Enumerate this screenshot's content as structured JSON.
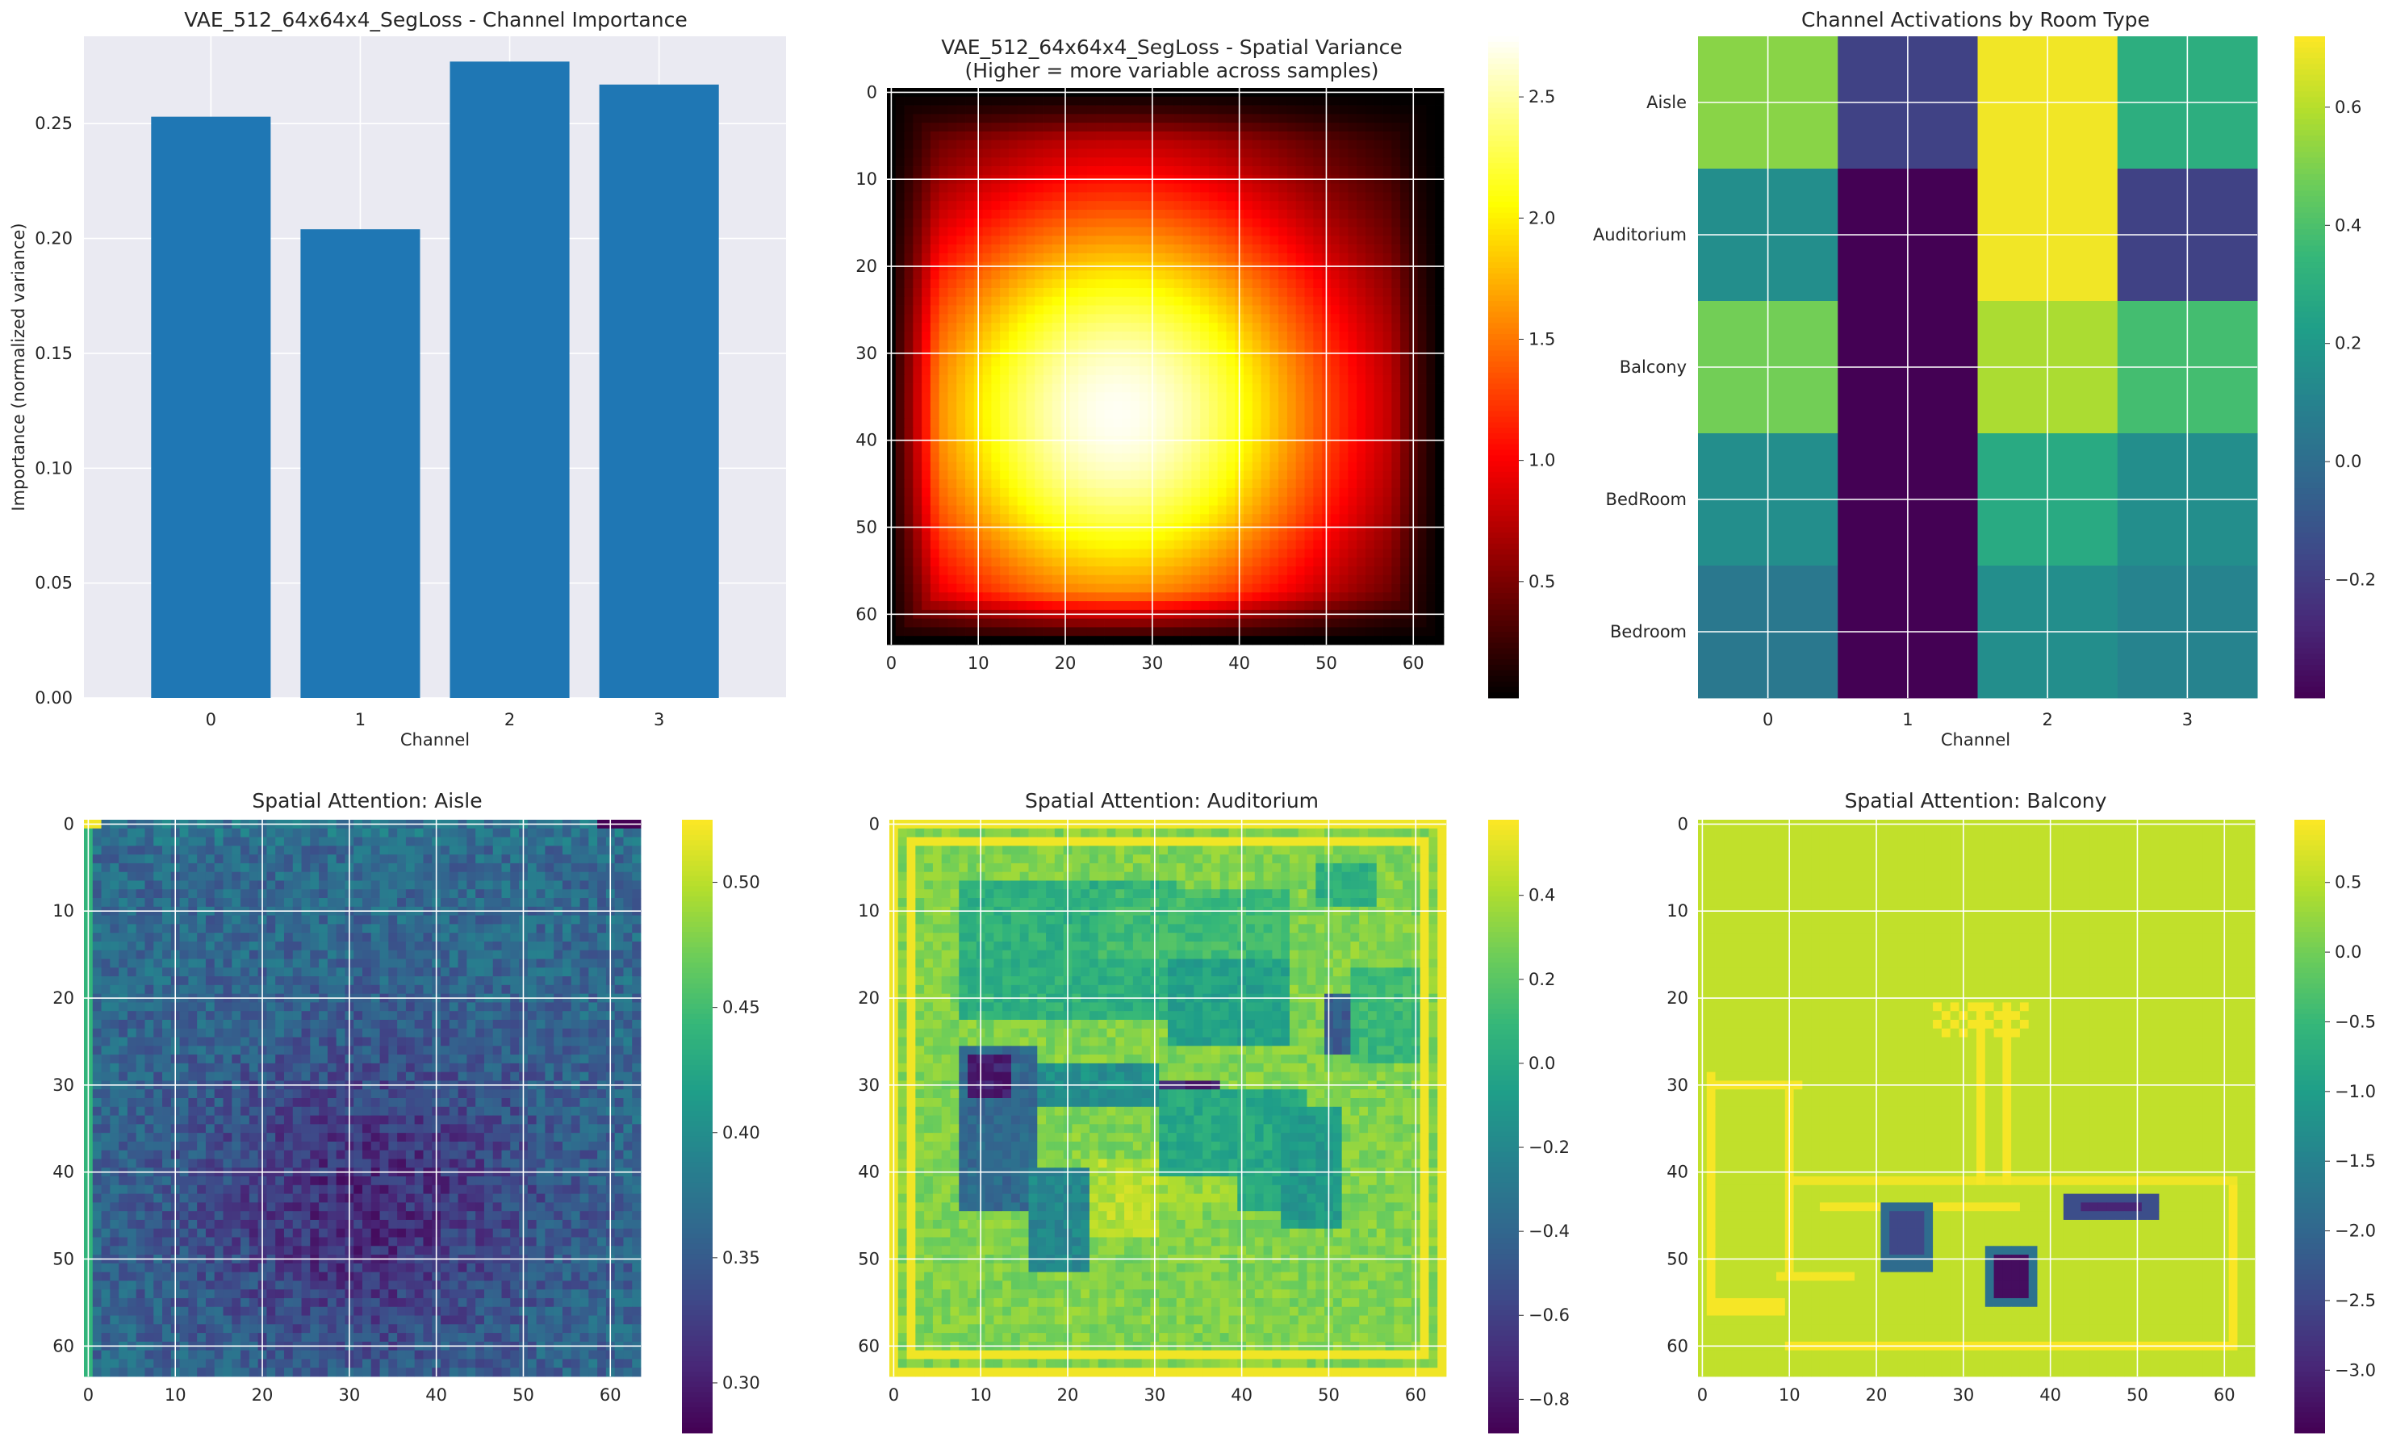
{
  "colors": {
    "panel_background": "#eaeaf2",
    "grid": "#ffffff",
    "bar": "#1f77b4",
    "text": "#262626"
  },
  "chart_data": [
    {
      "id": "channel-importance",
      "type": "bar",
      "title": "VAE_512_64x64x4_SegLoss - Channel Importance",
      "xlabel": "Channel",
      "ylabel": "Importance (normalized variance)",
      "categories": [
        "0",
        "1",
        "2",
        "3"
      ],
      "values": [
        0.253,
        0.204,
        0.277,
        0.267
      ],
      "ylim": [
        0,
        0.288
      ],
      "yticks": [
        "0.00",
        "0.05",
        "0.10",
        "0.15",
        "0.20",
        "0.25"
      ],
      "grid": true,
      "legend": "none"
    },
    {
      "id": "spatial-variance",
      "type": "heatmap",
      "title": "VAE_512_64x64x4_SegLoss - Spatial Variance",
      "subtitle": "(Higher = more variable across samples)",
      "colormap": "hot",
      "grid_size": [
        64,
        64
      ],
      "xticks": [
        "0",
        "10",
        "20",
        "30",
        "40",
        "50",
        "60"
      ],
      "yticks": [
        "0",
        "10",
        "20",
        "30",
        "40",
        "50",
        "60"
      ],
      "value_range": [
        0.02,
        2.75
      ],
      "peak": {
        "x": 26,
        "y": 37,
        "value": 2.75
      },
      "colorbar_ticks": [
        "0.5",
        "1.0",
        "1.5",
        "2.0",
        "2.5"
      ],
      "grid": true
    },
    {
      "id": "channel-activations",
      "type": "heatmap",
      "title": "Channel Activations by Room Type",
      "xlabel": "Channel",
      "colormap": "viridis",
      "columns": [
        "0",
        "1",
        "2",
        "3"
      ],
      "rows": [
        "Aisle",
        "Auditorium",
        "Balcony",
        "BedRoom",
        "Bedroom"
      ],
      "values": [
        [
          0.52,
          -0.18,
          0.7,
          0.3
        ],
        [
          0.15,
          -0.4,
          0.7,
          -0.18
        ],
        [
          0.48,
          -0.4,
          0.58,
          0.38
        ],
        [
          0.15,
          -0.4,
          0.28,
          0.15
        ],
        [
          0.05,
          -0.4,
          0.15,
          0.1
        ]
      ],
      "value_range": [
        -0.4,
        0.72
      ],
      "colorbar_ticks": [
        "−0.2",
        "0.0",
        "0.2",
        "0.4",
        "0.6"
      ],
      "grid": true
    },
    {
      "id": "attention-aisle",
      "type": "heatmap",
      "title": "Spatial Attention: Aisle",
      "colormap": "viridis",
      "grid_size": [
        64,
        64
      ],
      "xticks": [
        "0",
        "10",
        "20",
        "30",
        "40",
        "50",
        "60"
      ],
      "yticks": [
        "0",
        "10",
        "20",
        "30",
        "40",
        "50",
        "60"
      ],
      "value_range": [
        0.28,
        0.525
      ],
      "colorbar_ticks": [
        "0.30",
        "0.35",
        "0.40",
        "0.45",
        "0.50"
      ],
      "grid": true
    },
    {
      "id": "attention-auditorium",
      "type": "heatmap",
      "title": "Spatial Attention: Auditorium",
      "colormap": "viridis",
      "grid_size": [
        64,
        64
      ],
      "xticks": [
        "0",
        "10",
        "20",
        "30",
        "40",
        "50",
        "60"
      ],
      "yticks": [
        "0",
        "10",
        "20",
        "30",
        "40",
        "50",
        "60"
      ],
      "value_range": [
        -0.88,
        0.58
      ],
      "colorbar_ticks": [
        "−0.8",
        "−0.6",
        "−0.4",
        "−0.2",
        "0.0",
        "0.2",
        "0.4"
      ],
      "grid": true
    },
    {
      "id": "attention-balcony",
      "type": "heatmap",
      "title": "Spatial Attention: Balcony",
      "colormap": "viridis",
      "grid_size": [
        64,
        64
      ],
      "xticks": [
        "0",
        "10",
        "20",
        "30",
        "40",
        "50",
        "60"
      ],
      "yticks": [
        "0",
        "10",
        "20",
        "30",
        "40",
        "50",
        "60"
      ],
      "value_range": [
        -3.45,
        0.95
      ],
      "colorbar_ticks": [
        "−3.0",
        "−2.5",
        "−2.0",
        "−1.5",
        "−1.0",
        "−0.5",
        "0.0",
        "0.5"
      ],
      "grid": true
    }
  ]
}
